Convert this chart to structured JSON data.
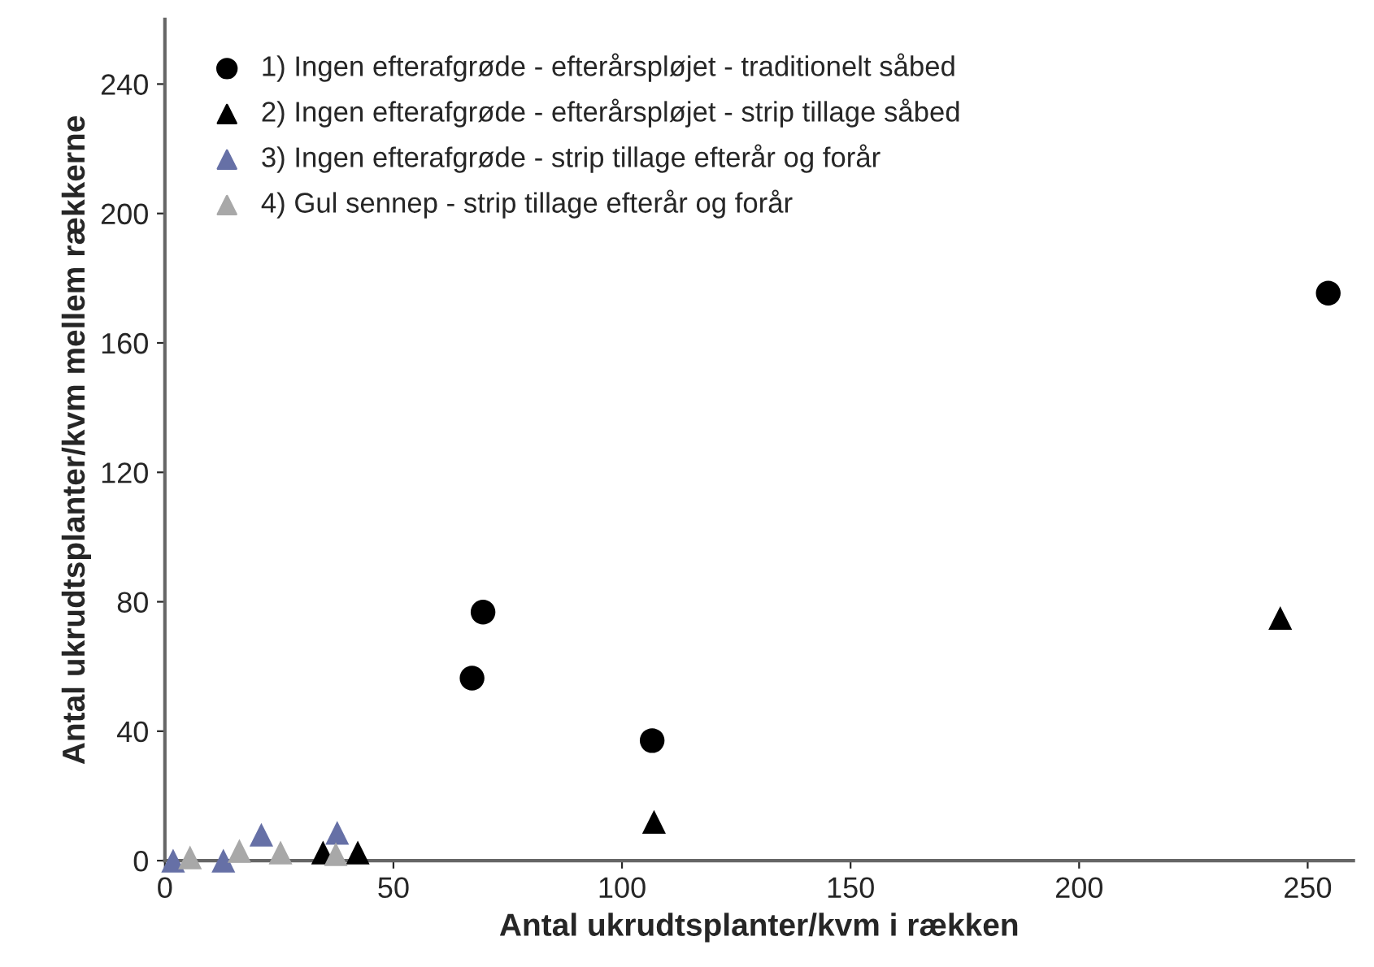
{
  "chart_data": {
    "type": "scatter",
    "xlabel": "Antal ukrudtsplanter/kvm i rækken",
    "ylabel": "Antal ukrudtsplanter/kvm mellem rækkerne",
    "xlim": [
      0,
      260
    ],
    "xticks": [
      0,
      50,
      100,
      150,
      200,
      250
    ],
    "ylim": [
      0,
      260
    ],
    "yticks": [
      0,
      40,
      80,
      120,
      160,
      200,
      240
    ],
    "grid": false,
    "legend": "top left",
    "series": [
      {
        "name": "1) Ingen efterafgrøde - efterårspløjet - traditionelt såbed",
        "color": "#000000",
        "marker": "circle",
        "x": [
          67.2,
          69.6,
          106.6,
          254.5
        ],
        "values": [
          56.4,
          76.8,
          37.1,
          175.4
        ]
      },
      {
        "name": "2) Ingen efterafgrøde - efterårspløjet - strip tillage såbed",
        "color": "#000000",
        "marker": "triangle",
        "x": [
          34.6,
          42.2,
          107,
          244
        ],
        "values": [
          2.5,
          2.5,
          12,
          75
        ]
      },
      {
        "name": "3) Ingen efterafgrøde - strip tillage efterår og forår",
        "color": "#6670a6",
        "marker": "triangle",
        "x": [
          1.8,
          12.8,
          21.1,
          37.7
        ],
        "values": [
          0,
          0,
          8,
          8.6
        ]
      },
      {
        "name": "4) Gul sennep - strip tillage efterår og forår",
        "color": "#a8a8a8",
        "marker": "triangle",
        "x": [
          5.5,
          16.3,
          25.3,
          37.4
        ],
        "values": [
          1,
          3,
          2.5,
          2
        ]
      }
    ]
  }
}
